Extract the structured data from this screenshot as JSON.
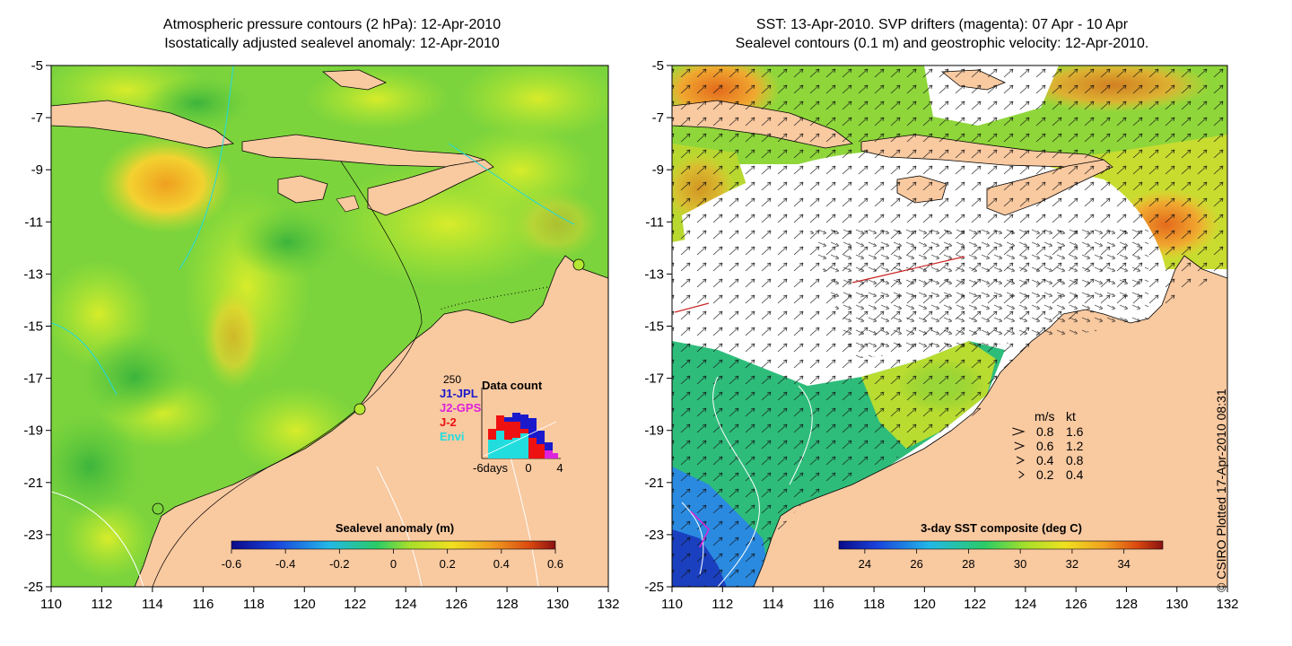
{
  "left_panel": {
    "title_line1": "Atmospheric pressure contours (2 hPa): 12-Apr-2010",
    "title_line2": "Isostatically adjusted sealevel anomaly: 12-Apr-2010",
    "colorbar": {
      "label": "Sealevel anomaly (m)",
      "tick_labels": [
        "-0.6",
        "-0.4",
        "-0.2",
        "0",
        "0.2",
        "0.4",
        "0.6"
      ],
      "range": [
        -0.6,
        0.6
      ]
    },
    "inset": {
      "title": "Data count",
      "y_max_label": "250",
      "x_labels": [
        "-6days",
        "0",
        "4"
      ],
      "legend": [
        {
          "name": "J1-JPL",
          "color": "#1a1acc"
        },
        {
          "name": "J2-GPS",
          "color": "#dd22dd"
        },
        {
          "name": "J-2",
          "color": "#ee1111"
        },
        {
          "name": "Envi",
          "color": "#22dddd"
        }
      ]
    }
  },
  "right_panel": {
    "title_line1": "SST: 13-Apr-2010. SVP drifters (magenta): 07 Apr - 10 Apr",
    "title_line2": "Sealevel contours (0.1 m) and geostrophic velocity: 12-Apr-2010.",
    "colorbar": {
      "label": "3-day SST composite (deg C)",
      "tick_labels": [
        "24",
        "26",
        "28",
        "30",
        "32",
        "34"
      ],
      "range": [
        23,
        35.5
      ]
    },
    "velocity_key": {
      "header_ms": "m/s",
      "header_kt": "kt",
      "rows": [
        {
          "ms": "0.8",
          "kt": "1.6"
        },
        {
          "ms": "0.6",
          "kt": "1.2"
        },
        {
          "ms": "0.4",
          "kt": "0.8"
        },
        {
          "ms": "0.2",
          "kt": "0.4"
        }
      ]
    }
  },
  "axes": {
    "lat_labels": [
      "-5",
      "-7",
      "-9",
      "-11",
      "-13",
      "-15",
      "-17",
      "-19",
      "-21",
      "-23",
      "-25"
    ],
    "lon_labels": [
      "110",
      "112",
      "114",
      "116",
      "118",
      "120",
      "122",
      "124",
      "126",
      "128",
      "130",
      "132"
    ]
  },
  "credit": "© CSIRO Plotted 17-Apr-2010 08:31",
  "colors": {
    "land": "#f9c9a0",
    "ocean_green": "#7cd43c",
    "ocean_lime": "#b4e832",
    "sst_blue": "#1a66dd",
    "sst_cloud": "#ffffff"
  }
}
